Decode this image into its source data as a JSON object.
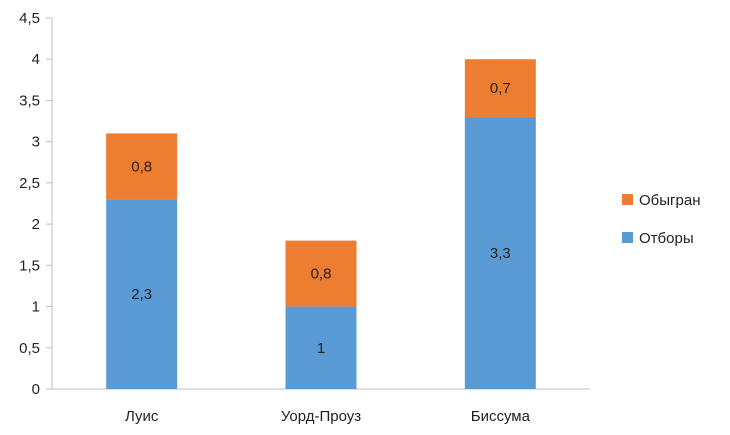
{
  "chart_data": {
    "type": "bar",
    "stacked": true,
    "categories": [
      "Луис",
      "Уорд-Проуз",
      "Биссума"
    ],
    "series": [
      {
        "name": "Отборы",
        "values": [
          2.3,
          1,
          3.3
        ],
        "color": "#5b9bd5",
        "labels": [
          "2,3",
          "1",
          "3,3"
        ]
      },
      {
        "name": "Обыгран",
        "values": [
          0.8,
          0.8,
          0.7
        ],
        "color": "#ed7d31",
        "labels": [
          "0,8",
          "0,8",
          "0,7"
        ]
      }
    ],
    "ylim": [
      0,
      4.5
    ],
    "yticks": [
      {
        "value": 0,
        "label": "0"
      },
      {
        "value": 0.5,
        "label": "0,5"
      },
      {
        "value": 1,
        "label": "1"
      },
      {
        "value": 1.5,
        "label": "1,5"
      },
      {
        "value": 2,
        "label": "2"
      },
      {
        "value": 2.5,
        "label": "2,5"
      },
      {
        "value": 3,
        "label": "3"
      },
      {
        "value": 3.5,
        "label": "3,5"
      },
      {
        "value": 4,
        "label": "4"
      },
      {
        "value": 4.5,
        "label": "4,5"
      }
    ],
    "grid": false,
    "legend": {
      "position": "right",
      "order": [
        "Обыгран",
        "Отборы"
      ]
    },
    "title": "",
    "xlabel": "",
    "ylabel": ""
  }
}
